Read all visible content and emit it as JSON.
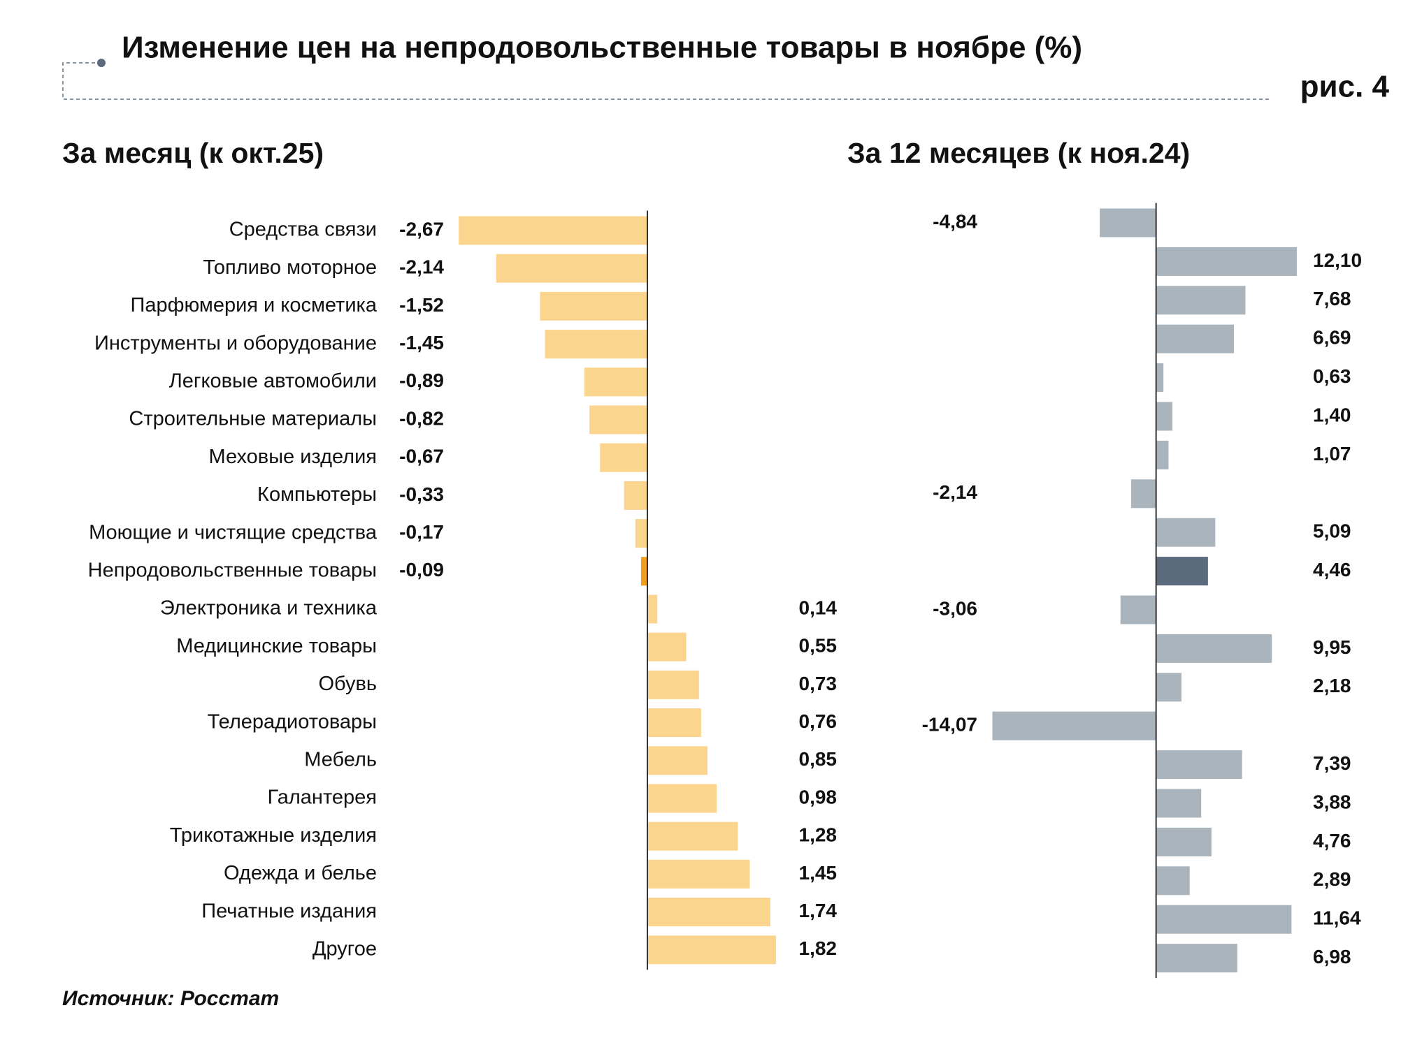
{
  "header": {
    "title": "Изменение цен на непродовольственные товары в ноябре (%)",
    "figure_label": "рис. 4"
  },
  "source": "Источник: Росстат",
  "chart_data": [
    {
      "type": "barh",
      "title": "За месяц (к окт.25)",
      "categories": [
        "Средства связи",
        "Топливо моторное",
        "Парфюмерия и косметика",
        "Инструменты и оборудование",
        "Легковые автомобили",
        "Строительные материалы",
        "Меховые изделия",
        "Компьютеры",
        "Моющие и чистящие средства",
        "Непродовольственные товары",
        "Электроника и техника",
        "Медицинские товары",
        "Обувь",
        "Телерадиотовары",
        "Мебель",
        "Галантерея",
        "Трикотажные изделия",
        "Одежда и белье",
        "Печатные издания",
        "Другое"
      ],
      "values": [
        -2.67,
        -2.14,
        -1.52,
        -1.45,
        -0.89,
        -0.82,
        -0.67,
        -0.33,
        -0.17,
        -0.09,
        0.14,
        0.55,
        0.73,
        0.76,
        0.85,
        0.98,
        1.28,
        1.45,
        1.74,
        1.82
      ],
      "value_labels": [
        "-2,67",
        "-2,14",
        "-1,52",
        "-1,45",
        "-0,89",
        "-0,82",
        "-0,67",
        "-0,33",
        "-0,17",
        "-0,09",
        "0,14",
        "0,55",
        "0,73",
        "0,76",
        "0,85",
        "0,98",
        "1,28",
        "1,45",
        "1,74",
        "1,82"
      ],
      "color": "#fbd58e",
      "highlight": {
        "index": 9,
        "color": "#f0a020"
      },
      "xlim": [
        -2.8,
        2.8
      ]
    },
    {
      "type": "barh",
      "title": "За 12 месяцев (к ноя.24)",
      "values": [
        -4.84,
        12.1,
        7.68,
        6.69,
        0.63,
        1.4,
        1.07,
        -2.14,
        5.09,
        4.46,
        -3.06,
        9.95,
        2.18,
        -14.07,
        7.39,
        3.88,
        4.76,
        2.89,
        11.64,
        6.98
      ],
      "value_labels": [
        "-4,84",
        "12,10",
        "7,68",
        "6,69",
        "0,63",
        "1,40",
        "1,07",
        "-2,14",
        "5,09",
        "4,46",
        "-3,06",
        "9,95",
        "2,18",
        "-14,07",
        "7,39",
        "3,88",
        "4,76",
        "2,89",
        "11,64",
        "6,98"
      ],
      "color": "#aab4bd",
      "highlight": {
        "index": 9,
        "color": "#5b6b7d"
      },
      "xlim": [
        -15,
        13
      ]
    }
  ]
}
